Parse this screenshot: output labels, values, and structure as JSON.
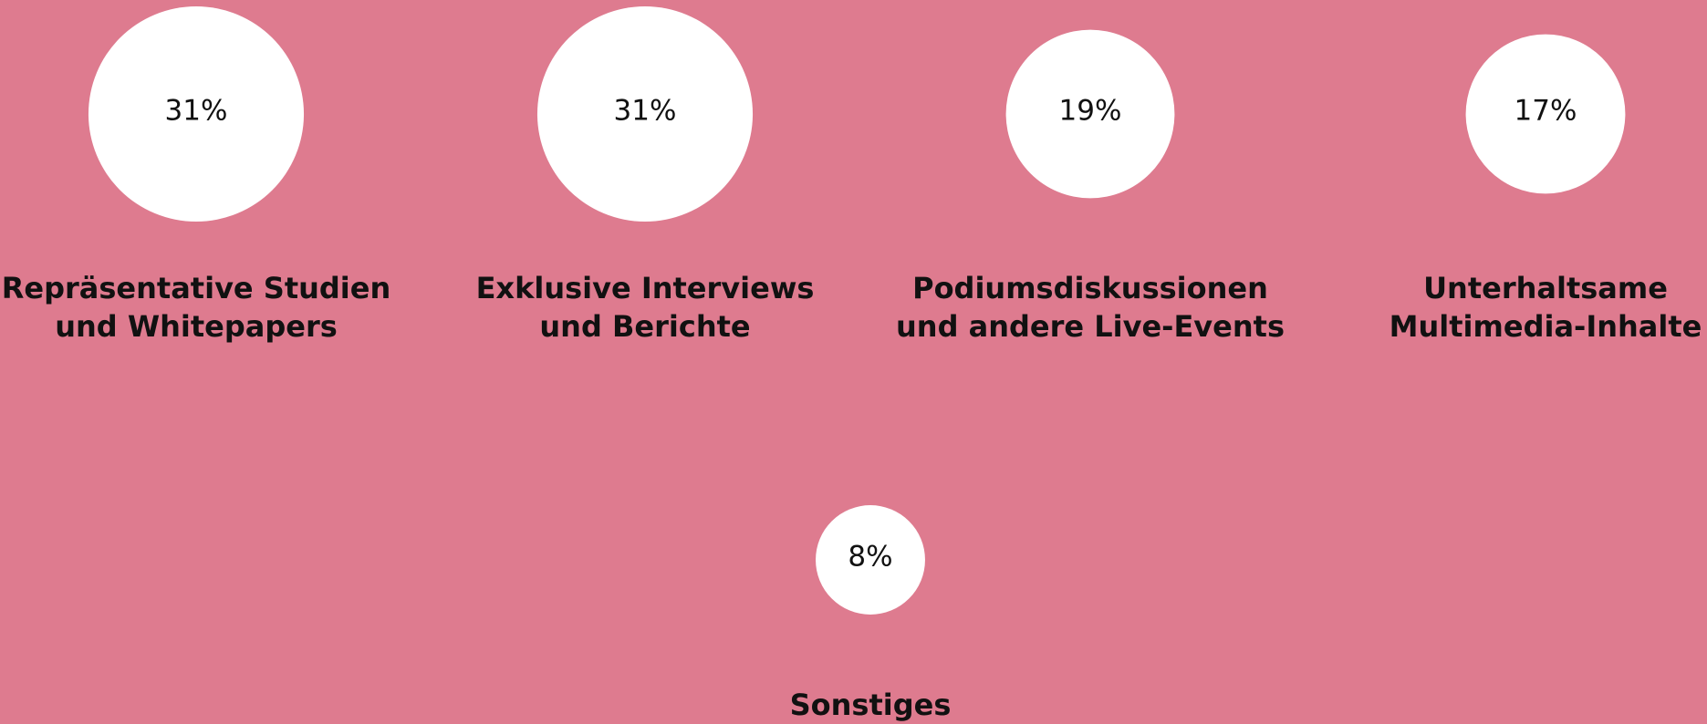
{
  "chart_data": {
    "type": "bubble",
    "categories": [
      "Repräsentative Studien\nund Whitepapers",
      "Exklusive Interviews\nund Berichte",
      "Podiumsdiskussionen\nund andere Live-Events",
      "Unterhaltsame\nMultimedia-Inhalte",
      "Sonstiges"
    ],
    "values": [
      31,
      31,
      19,
      17,
      8
    ],
    "value_labels": [
      "31%",
      "31%",
      "19%",
      "17%",
      "8%"
    ],
    "color": "#ffffff",
    "background": "#de7b8f"
  }
}
